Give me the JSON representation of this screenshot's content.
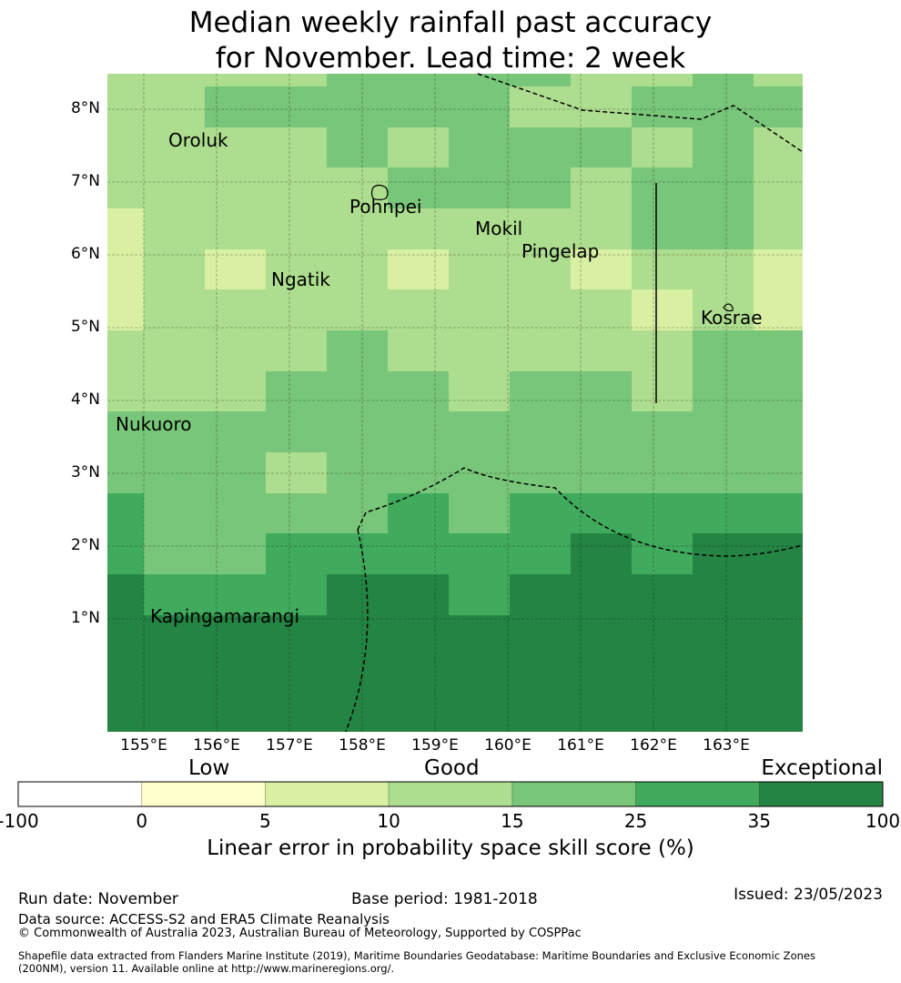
{
  "title": {
    "line1": "Median weekly rainfall past accuracy",
    "line2": "for November. Lead time: 2 week"
  },
  "map": {
    "lon_labels": [
      "155°E",
      "156°E",
      "157°E",
      "158°E",
      "159°E",
      "160°E",
      "161°E",
      "162°E",
      "163°E"
    ],
    "lat_labels": [
      "8°N",
      "7°N",
      "6°N",
      "5°N",
      "4°N",
      "3°N",
      "2°N",
      "1°N"
    ],
    "islands": [
      "Oroluk",
      "Pohnpei",
      "Mokil",
      "Pingelap",
      "Ngatik",
      "Kosrae",
      "Nukuoro",
      "Kapingamarangi"
    ],
    "grid_classes_north_to_south": [
      [
        3,
        3,
        3,
        3,
        4,
        4,
        4,
        4,
        3,
        3,
        4,
        3
      ],
      [
        3,
        3,
        4,
        4,
        4,
        4,
        4,
        3,
        3,
        4,
        4,
        4
      ],
      [
        3,
        3,
        3,
        3,
        4,
        3,
        4,
        4,
        4,
        3,
        4,
        3
      ],
      [
        3,
        3,
        3,
        3,
        3,
        4,
        4,
        4,
        3,
        4,
        4,
        3
      ],
      [
        2,
        3,
        3,
        3,
        3,
        3,
        3,
        3,
        3,
        4,
        4,
        3
      ],
      [
        2,
        3,
        2,
        3,
        3,
        2,
        3,
        3,
        2,
        3,
        3,
        2
      ],
      [
        2,
        3,
        3,
        3,
        3,
        3,
        3,
        3,
        3,
        2,
        3,
        2
      ],
      [
        3,
        3,
        3,
        3,
        4,
        3,
        3,
        3,
        3,
        3,
        4,
        4
      ],
      [
        3,
        3,
        3,
        4,
        4,
        4,
        3,
        4,
        4,
        3,
        4,
        4
      ],
      [
        4,
        4,
        4,
        4,
        4,
        4,
        4,
        4,
        4,
        4,
        4,
        4
      ],
      [
        4,
        4,
        4,
        3,
        4,
        4,
        4,
        4,
        4,
        4,
        4,
        4
      ],
      [
        5,
        4,
        4,
        4,
        4,
        5,
        4,
        5,
        5,
        5,
        5,
        5
      ],
      [
        5,
        4,
        4,
        5,
        5,
        5,
        5,
        5,
        6,
        5,
        6,
        6
      ],
      [
        6,
        5,
        5,
        5,
        6,
        6,
        5,
        6,
        6,
        6,
        6,
        6
      ],
      [
        6,
        6,
        6,
        6,
        6,
        6,
        6,
        6,
        6,
        6,
        6,
        6
      ],
      [
        6,
        6,
        6,
        6,
        6,
        6,
        6,
        6,
        6,
        6,
        6,
        6
      ],
      [
        6,
        6,
        6,
        6,
        6,
        6,
        6,
        6,
        6,
        6,
        6,
        6
      ]
    ]
  },
  "legend": {
    "categories": [
      "Low",
      "Good",
      "Exceptional"
    ],
    "ticks": [
      "-100",
      "0",
      "5",
      "10",
      "15",
      "25",
      "35",
      "100"
    ],
    "colors": [
      "#ffffff",
      "#ffffcc",
      "#d9f0a3",
      "#addd8e",
      "#78c679",
      "#41ab5d",
      "#238443"
    ],
    "label": "Linear error in probability space skill score (%)"
  },
  "footer": {
    "run_date": "Run date: November",
    "base_period": "Base period: 1981-2018",
    "issued": "Issued: 23/05/2023",
    "data_source": "Data source: ACCESS-S2 and ERA5 Climate Reanalysis",
    "copyright": "© Commonwealth of Australia 2023, Australian Bureau of Meteorology, Supported by COSPPac",
    "shapefile_line1": "Shapefile data extracted from Flanders Marine Institute (2019), Maritime Boundaries Geodatabase: Maritime Boundaries and Exclusive Economic Zones",
    "shapefile_line2": "(200NM), version 11. Available online at http://www.marineregions.org/."
  }
}
